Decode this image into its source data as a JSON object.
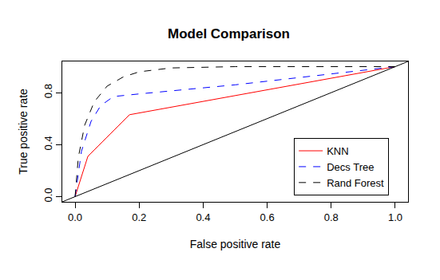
{
  "chart_data": {
    "type": "line",
    "title": "Model Comparison",
    "x_label": "False positive rate",
    "y_label": "True positive rate",
    "xlim": [
      -0.04,
      1.04
    ],
    "ylim": [
      -0.04,
      1.04
    ],
    "xticks": [
      {
        "value": 0,
        "label": "0.0"
      },
      0.2,
      0.4,
      0.6,
      0.8,
      {
        "value": 1,
        "label": "1.0"
      }
    ],
    "yticks": [
      {
        "value": 0,
        "label": "0.0"
      },
      0.4,
      0.8
    ],
    "grid": false,
    "legend": "bottom right",
    "series": [
      {
        "name": "KNN",
        "color": "red",
        "line_style": "solid",
        "x": [
          0,
          0.04,
          0.17,
          1
        ],
        "values": [
          0,
          0.31,
          0.63,
          1
        ]
      },
      {
        "name": "Decs Tree",
        "color": "blue",
        "line_style": "dashed",
        "x": [
          0,
          0.02,
          0.05,
          0.08,
          0.12,
          0.2,
          0.5,
          1
        ],
        "values": [
          0,
          0.35,
          0.58,
          0.7,
          0.77,
          0.79,
          0.86,
          1
        ]
      },
      {
        "name": "Rand Forest",
        "color": "black",
        "line_style": "dashed",
        "x": [
          0,
          0.01,
          0.03,
          0.06,
          0.1,
          0.15,
          0.2,
          0.3,
          0.5,
          1
        ],
        "values": [
          0,
          0.3,
          0.55,
          0.73,
          0.85,
          0.92,
          0.96,
          0.99,
          1,
          1
        ]
      },
      {
        "color": "black",
        "line_style": "solid",
        "x": [
          -0.04,
          1.04
        ],
        "values": [
          -0.04,
          1.04
        ]
      }
    ]
  }
}
